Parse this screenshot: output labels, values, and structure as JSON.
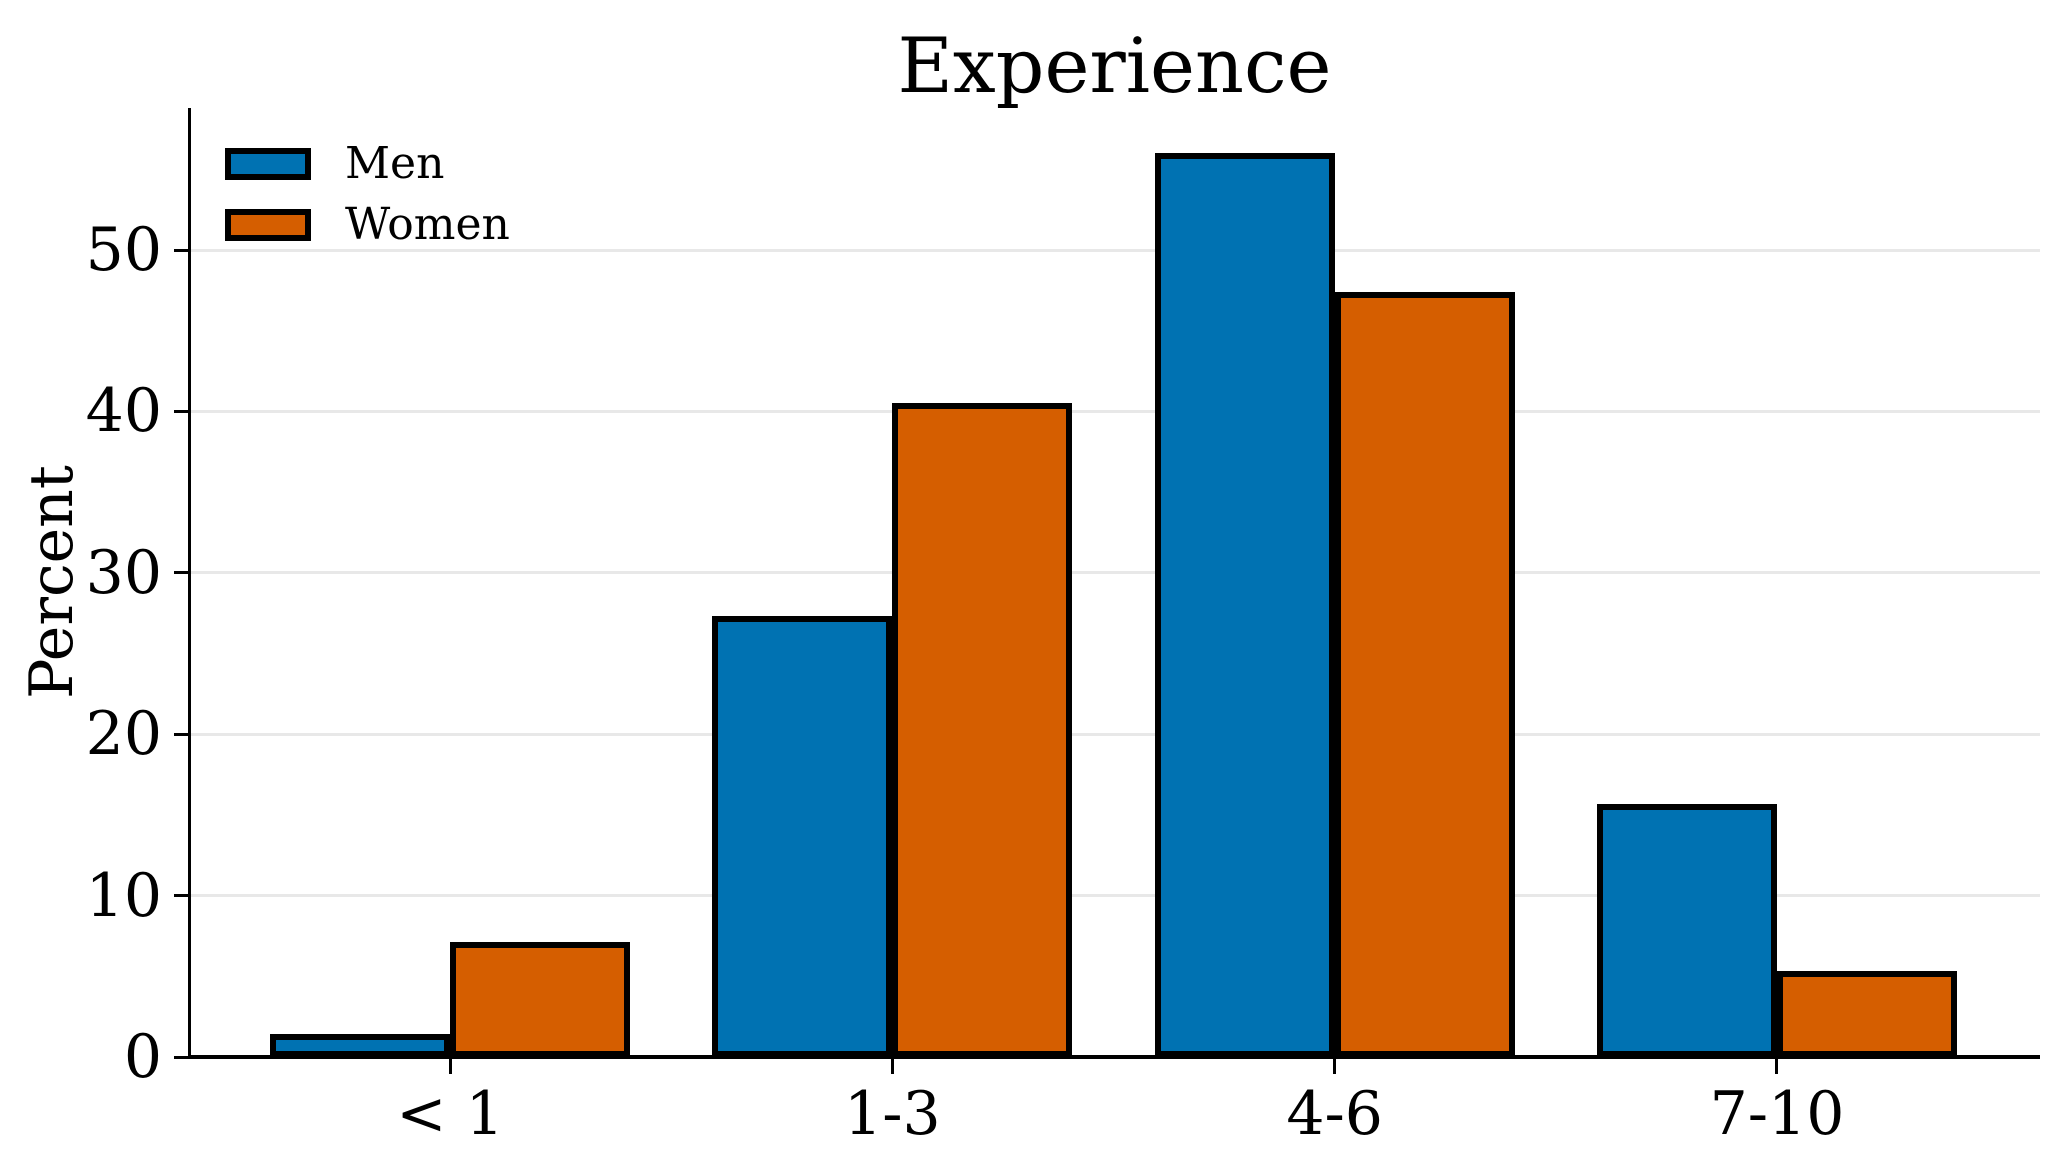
{
  "chart_data": {
    "type": "bar",
    "title": "Experience",
    "xlabel": "",
    "ylabel": "Percent",
    "categories": [
      "< 1",
      "1-3",
      "4-6",
      "7-10"
    ],
    "series": [
      {
        "name": "Men",
        "color": "#0072B2",
        "values": [
          1.4,
          27.3,
          56.0,
          15.7
        ]
      },
      {
        "name": "Women",
        "color": "#D55E00",
        "values": [
          7.1,
          40.5,
          47.4,
          5.3
        ]
      }
    ],
    "ylim": [
      0,
      58.8
    ],
    "yticks": [
      0,
      10,
      20,
      30,
      40,
      50
    ],
    "grid": true,
    "gridline_color": "#e8e8e8",
    "bar_edge_color": "#000000",
    "axis_color": "#000000",
    "background_color": "#ffffff",
    "legend_position": "upper-left",
    "legend_labels": [
      "Men",
      "Women"
    ]
  }
}
